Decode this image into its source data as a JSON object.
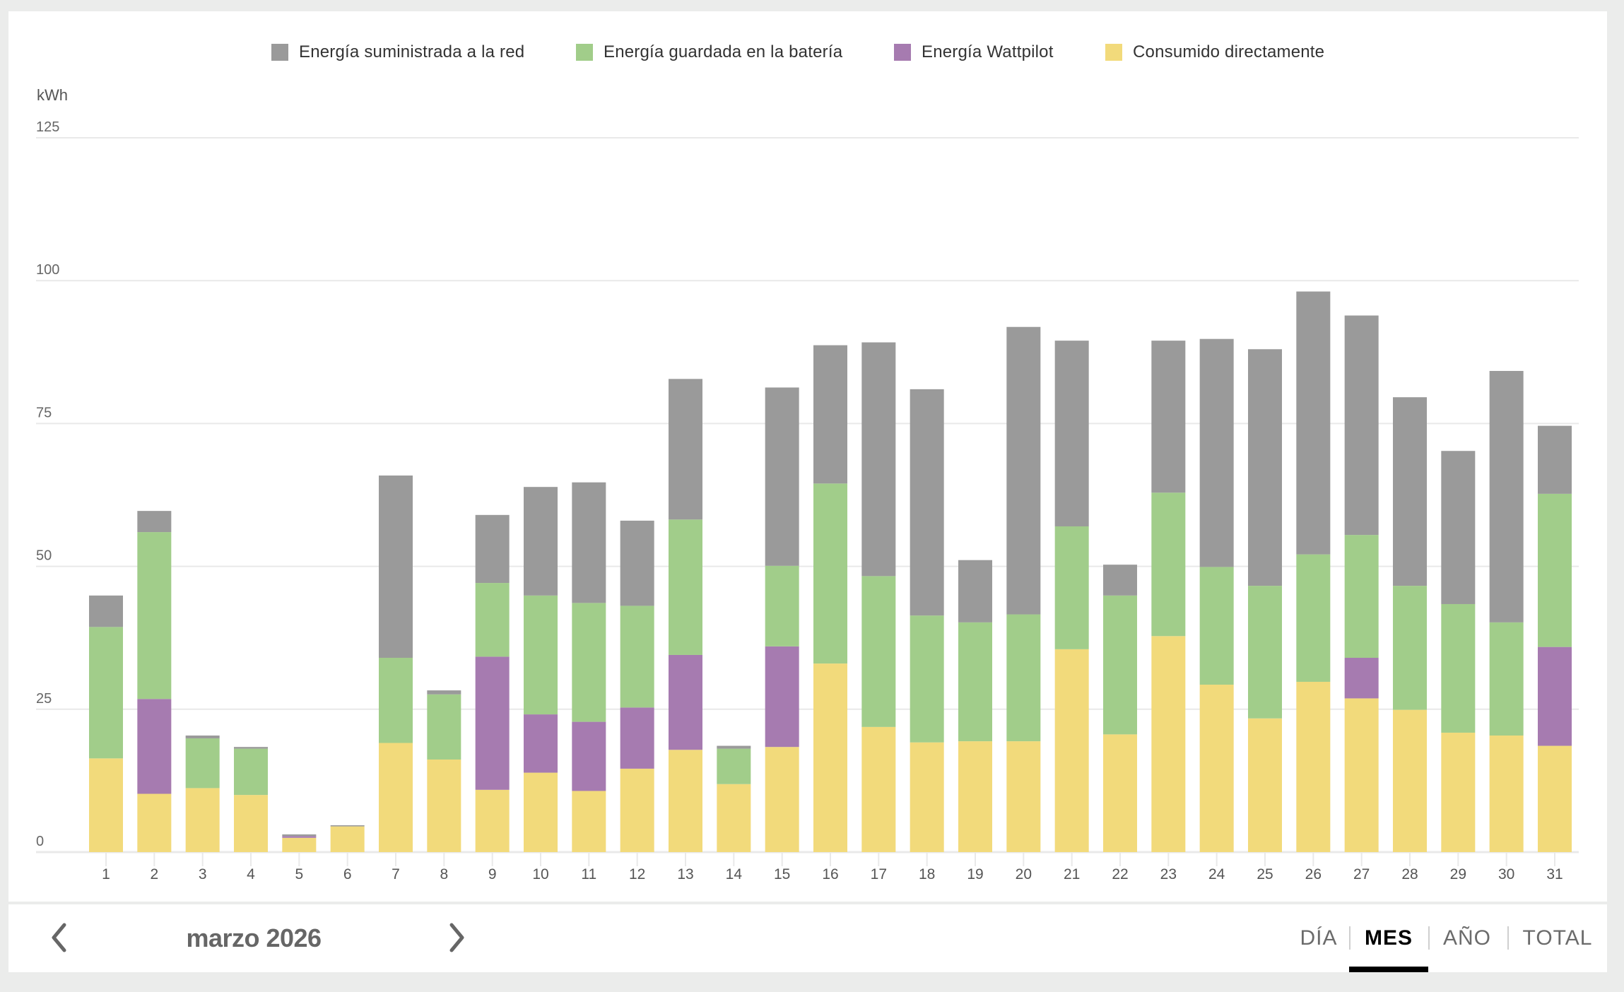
{
  "chart_data": {
    "type": "bar",
    "stacked": true,
    "title": "",
    "xlabel": "",
    "ylabel": "kWh",
    "ylim": [
      0,
      125
    ],
    "yticks": [
      0,
      25,
      50,
      75,
      100,
      125
    ],
    "grid": true,
    "legend_position": "top-center",
    "categories": [
      "1",
      "2",
      "3",
      "4",
      "5",
      "6",
      "7",
      "8",
      "9",
      "10",
      "11",
      "12",
      "13",
      "14",
      "15",
      "16",
      "17",
      "18",
      "19",
      "20",
      "21",
      "22",
      "23",
      "24",
      "25",
      "26",
      "27",
      "28",
      "29",
      "30",
      "31"
    ],
    "series": [
      {
        "name": "Consumido directamente",
        "color": "#f2da7b",
        "values": [
          16.4,
          10.2,
          11.2,
          10.0,
          2.5,
          4.5,
          19.1,
          16.2,
          10.9,
          13.9,
          10.7,
          14.6,
          17.9,
          11.9,
          18.4,
          33.0,
          21.9,
          19.2,
          19.4,
          19.4,
          35.5,
          20.6,
          37.8,
          29.3,
          23.4,
          29.8,
          26.9,
          24.9,
          20.9,
          20.4,
          18.6
        ]
      },
      {
        "name": "Energía Wattpilot",
        "color": "#a67bb0",
        "values": [
          0,
          16.6,
          0,
          0,
          0.3,
          0,
          0,
          0,
          23.3,
          10.2,
          12.1,
          10.7,
          16.6,
          0,
          17.6,
          0,
          0,
          0,
          0,
          0,
          0,
          0,
          0,
          0,
          0,
          0,
          7.1,
          0,
          0,
          0,
          17.3
        ]
      },
      {
        "name": "Energía guardada en la batería",
        "color": "#a1cd8a",
        "values": [
          23.0,
          29.2,
          8.7,
          8.1,
          0,
          0,
          14.9,
          11.4,
          12.9,
          20.8,
          20.8,
          17.8,
          23.7,
          6.2,
          14.1,
          31.5,
          26.4,
          22.2,
          20.8,
          22.2,
          21.5,
          24.3,
          25.1,
          20.6,
          23.2,
          22.3,
          21.5,
          21.7,
          22.5,
          19.8,
          26.8
        ]
      },
      {
        "name": "Energía suministrada a la red",
        "color": "#9a9a9a",
        "values": [
          5.5,
          3.7,
          0.5,
          0.3,
          0.3,
          0.2,
          31.9,
          0.7,
          11.9,
          19.0,
          21.1,
          14.9,
          24.6,
          0.5,
          31.2,
          24.2,
          40.9,
          39.6,
          10.9,
          50.3,
          32.5,
          5.4,
          26.6,
          39.9,
          41.4,
          46.0,
          38.4,
          33.0,
          26.8,
          44.0,
          11.9
        ]
      }
    ]
  },
  "legend": [
    {
      "label": "Energía suministrada a la red",
      "color": "#9a9a9a"
    },
    {
      "label": "Energía guardada en la batería",
      "color": "#a1cd8a"
    },
    {
      "label": "Energía Wattpilot",
      "color": "#a67bb0"
    },
    {
      "label": "Consumido directamente",
      "color": "#f2da7b"
    }
  ],
  "unit_label": "kWh",
  "navigation": {
    "period_label": "marzo 2026",
    "prev_icon": "chevron-left-icon",
    "next_icon": "chevron-right-icon"
  },
  "tabs": [
    {
      "label": "DÍA",
      "active": false
    },
    {
      "label": "MES",
      "active": true
    },
    {
      "label": "AÑO",
      "active": false
    },
    {
      "label": "TOTAL",
      "active": false
    }
  ]
}
